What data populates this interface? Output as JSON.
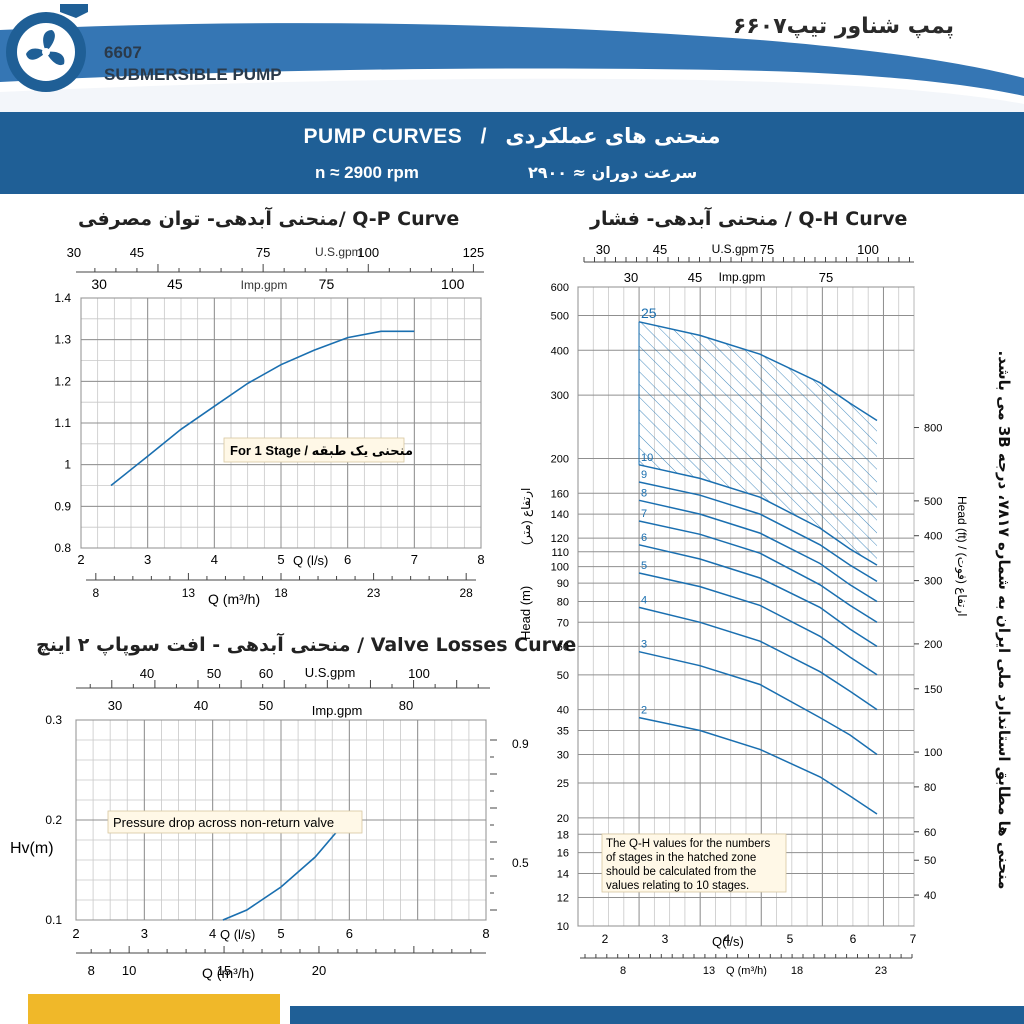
{
  "header": {
    "model": "6607",
    "product": "SUBMERSIBLE PUMP",
    "fa_title": "پمپ شناور تیپ۶۶۰۷"
  },
  "banner": {
    "title_en": "PUMP CURVES",
    "separator": "/",
    "title_fa": "منحنی های عملکردی",
    "speed_en": "n ≈ 2900 rpm",
    "speed_fa": "سرعت دوران ≈ ۲۹۰۰"
  },
  "side_note": "منحنی ها مطابق استاندارد ملی ایران به شماره ۷۸۱۷، درجه 3B می باشد.",
  "colors": {
    "brand_blue": "#1f5f96",
    "curve_blue": "#1a6fb0",
    "accent_yellow": "#f0b829"
  },
  "qp_chart": {
    "title": "منحنی آبدهی- توان مصرفی/ Q-P Curve",
    "usgpm_label": "U.S.gpm",
    "usgpm_ticks": [
      "30",
      "45",
      "75",
      "100",
      "125"
    ],
    "impgpm_label": "Imp.gpm",
    "impgpm_ticks": [
      "30",
      "45",
      "75",
      "100"
    ],
    "y_ticks": [
      "0.8",
      "0.9",
      "1",
      "1.1",
      "1.2",
      "1.3",
      "1.4"
    ],
    "x_ticks": [
      "2",
      "3",
      "4",
      "5",
      "6",
      "7",
      "8"
    ],
    "x_label": "Q (l/s)",
    "m3h_ticks": [
      "8",
      "13",
      "18",
      "23",
      "28"
    ],
    "m3h_label": "Q (m³/h)",
    "note": "For 1 Stage / منحنی یک طبقه"
  },
  "valve_chart": {
    "title": "منحنی آبدهی - افت سوپاپ ۲ اینچ / Valve Losses Curve",
    "usgpm_label": "U.S.gpm",
    "usgpm_ticks": [
      "40",
      "50",
      "60",
      "100"
    ],
    "impgpm_label": "Imp.gpm",
    "impgpm_ticks": [
      "30",
      "40",
      "50",
      "80"
    ],
    "y_ticks": [
      "0.1",
      "0.2",
      "0.3"
    ],
    "y_label": "Hv(m)",
    "right_ticks": [
      "0.5",
      "0.9"
    ],
    "x_ticks": [
      "2",
      "3",
      "4",
      "5",
      "6",
      "8"
    ],
    "x_label": "Q (l/s)",
    "m3h_ticks": [
      "8",
      "10",
      "15",
      "20"
    ],
    "m3h_label": "Q (m³/h)",
    "note": "Pressure drop across non-return valve"
  },
  "qh_chart": {
    "title": "منحنی آبدهی- فشار / Q-H Curve",
    "usgpm_label": "U.S.gpm",
    "usgpm_ticks": [
      "30",
      "45",
      "75",
      "100"
    ],
    "impgpm_label": "Imp.gpm",
    "impgpm_ticks": [
      "30",
      "45",
      "75"
    ],
    "y_ticks": [
      "10",
      "12",
      "14",
      "16",
      "18",
      "20",
      "25",
      "30",
      "35",
      "40",
      "50",
      "60",
      "70",
      "80",
      "90",
      "100",
      "110",
      "120",
      "140",
      "160",
      "200",
      "300",
      "400",
      "500",
      "600"
    ],
    "y_label_en": "Head (m)",
    "y_label_fa": "ارتفاع (متر)",
    "right_ticks": [
      "40",
      "50",
      "60",
      "80",
      "100",
      "150",
      "200",
      "300",
      "400",
      "500",
      "800"
    ],
    "right_label": "Head (ft) / (فوت) ارتفاع",
    "x_ticks": [
      "2",
      "3",
      "4",
      "5",
      "6",
      "7"
    ],
    "x_label": "Q(l/s)",
    "m3h_ticks": [
      "8",
      "13",
      "18",
      "23"
    ],
    "m3h_label": "Q (m³/h)",
    "note_lines": [
      "The Q-H values for the numbers",
      "of stages in the hatched zone",
      "should be calculated from the",
      "values relating to 10 stages."
    ]
  },
  "chart_data": [
    {
      "type": "line",
      "title": "Q-P Curve",
      "xlabel": "Q (l/s)",
      "ylabel": "",
      "xlim": [
        2,
        8
      ],
      "ylim": [
        0.8,
        1.4
      ],
      "series": [
        {
          "name": "For 1 Stage",
          "x": [
            2.45,
            3.0,
            3.5,
            4.0,
            4.5,
            5.0,
            5.5,
            6.0,
            6.5,
            7.0
          ],
          "y": [
            0.95,
            1.02,
            1.085,
            1.14,
            1.195,
            1.24,
            1.275,
            1.305,
            1.32,
            1.32
          ]
        }
      ]
    },
    {
      "type": "line",
      "title": "Valve Losses Curve",
      "xlabel": "Q (l/s)",
      "ylabel": "Hv(m)",
      "xlim": [
        2,
        8
      ],
      "ylim": [
        0.1,
        0.3
      ],
      "series": [
        {
          "name": "Pressure drop across non-return valve",
          "x": [
            4.15,
            4.5,
            5.0,
            5.5,
            6.0
          ],
          "y": [
            0.1,
            0.11,
            0.133,
            0.163,
            0.203
          ]
        }
      ]
    },
    {
      "type": "line",
      "title": "Q-H Curve",
      "xlabel": "Q(l/s)",
      "ylabel": "Head (m)",
      "xlim": [
        1.5,
        7
      ],
      "ylim": [
        10,
        600
      ],
      "log_y": true,
      "x": [
        2.5,
        3.5,
        4.5,
        5.5,
        6.0,
        6.4
      ],
      "series": [
        {
          "name": "25",
          "y": [
            480,
            440,
            390,
            325,
            285,
            255
          ]
        },
        {
          "name": "10",
          "y": [
            192,
            176,
            156,
            128,
            112,
            101
          ]
        },
        {
          "name": "9",
          "y": [
            172,
            158,
            140,
            115,
            101,
            91
          ]
        },
        {
          "name": "8",
          "y": [
            153,
            140,
            124,
            102,
            89,
            80
          ]
        },
        {
          "name": "7",
          "y": [
            134,
            123,
            109,
            89,
            78,
            70
          ]
        },
        {
          "name": "6",
          "y": [
            115,
            105,
            93,
            77,
            67,
            60
          ]
        },
        {
          "name": "5",
          "y": [
            96,
            88,
            78,
            64,
            56,
            50
          ]
        },
        {
          "name": "4",
          "y": [
            77,
            70,
            62,
            51,
            45,
            40
          ]
        },
        {
          "name": "3",
          "y": [
            58,
            53,
            47,
            38,
            34,
            30
          ]
        },
        {
          "name": "2",
          "y": [
            38,
            35,
            31,
            26,
            23,
            20.5
          ]
        }
      ]
    }
  ]
}
